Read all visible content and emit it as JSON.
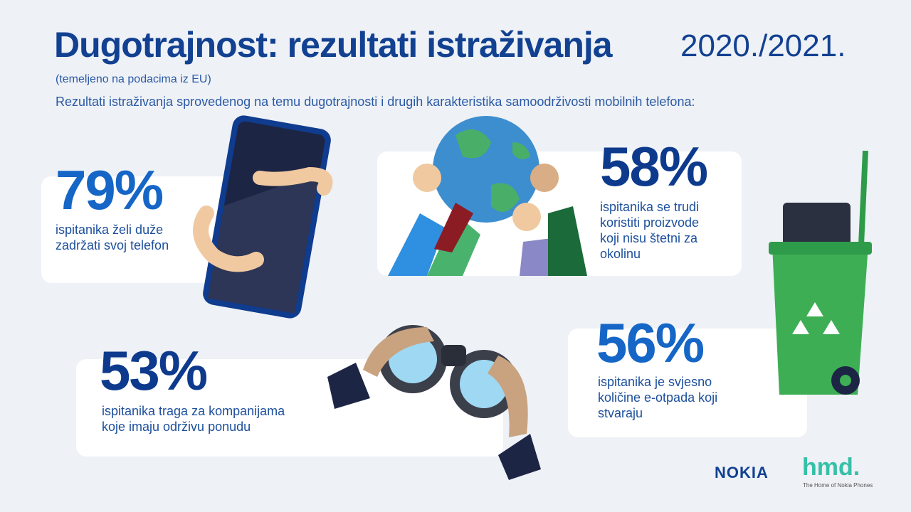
{
  "header": {
    "title": "Dugotrajnost: rezultati istraživanja",
    "year": "2020./2021.",
    "note": "(temeljeno na podacima iz EU)",
    "subtitle": "Rezultati istraživanja sprovedenog na temu dugotrajnosti i drugih karakteristika samoodrživosti mobilnih telefona:"
  },
  "stats": [
    {
      "value": "79%",
      "lines": [
        "ispitanika želi duže",
        "zadržati svoj telefon"
      ]
    },
    {
      "value": "58%",
      "lines": [
        "ispitanika se trudi",
        "koristiti proizvode",
        "koji nisu štetni za",
        "okolinu"
      ]
    },
    {
      "value": "53%",
      "lines": [
        "ispitanika traga za kompanijama",
        "koje imaju održivu ponudu"
      ]
    },
    {
      "value": "56%",
      "lines": [
        "ispitanika je svjesno",
        "količine e-otpada koji",
        "stvaraju"
      ]
    }
  ],
  "footer": {
    "brand": "NOKIA",
    "logo": "hmd.",
    "tagline": "The Home of Nokia Phones"
  }
}
